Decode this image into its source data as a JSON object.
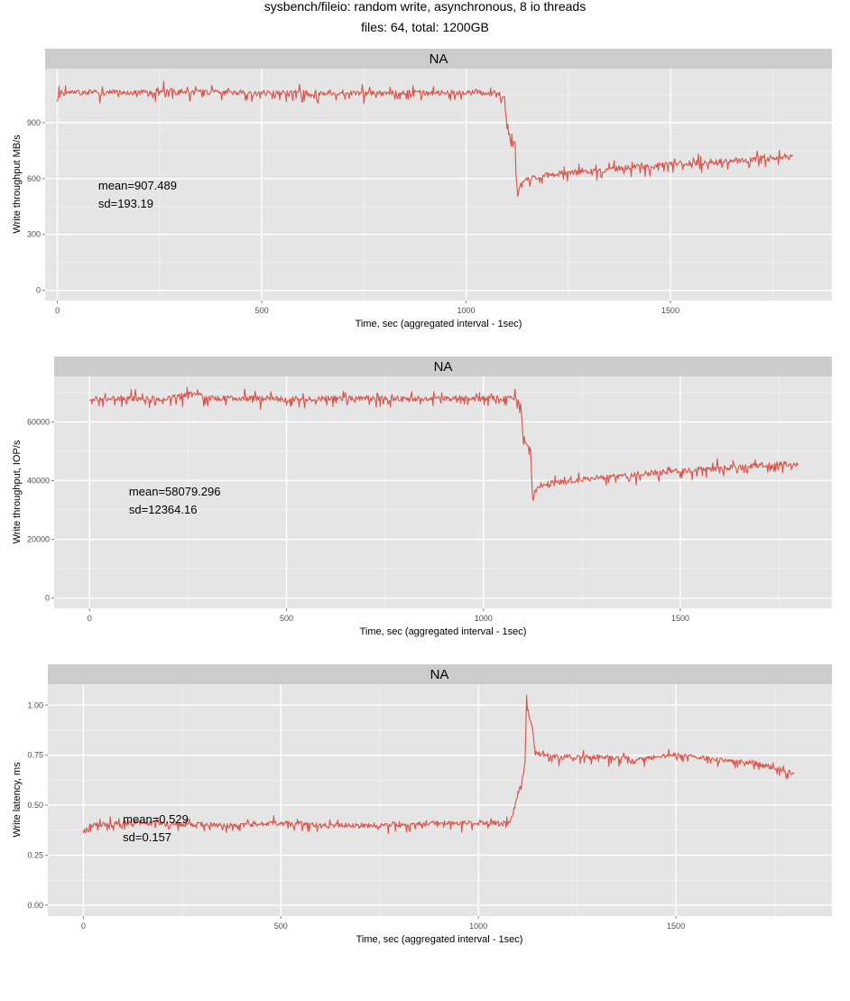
{
  "figure": {
    "title_line1": "sysbench/fileio: random write, asynchronous, 8 io threads",
    "title_line2": "files: 64, total: 1200GB",
    "line_color": "#d9534a",
    "panel_bg": "#e5e5e5",
    "strip_bg": "#cccccc",
    "grid_major": "#ffffff",
    "grid_minor": "#f2f2f2"
  },
  "chart_data": [
    {
      "type": "line",
      "strip": "NA",
      "xlabel": "Time, sec (aggregated interval - 1sec)",
      "ylabel": "Write throughput MB/s",
      "xlim": [
        -30,
        1895
      ],
      "ylim": [
        -55,
        1190
      ],
      "xticks": [
        0,
        500,
        1000,
        1500
      ],
      "xtick_labels": [
        "0",
        "500",
        "1000",
        "1500"
      ],
      "yticks": [
        0,
        300,
        600,
        900
      ],
      "ytick_labels": [
        "0",
        "300",
        "600",
        "900"
      ],
      "annotation_mean": "mean=907.489",
      "annotation_sd": "sd=193.19",
      "annotation_at": [
        100,
        540
      ],
      "series": [
        {
          "name": "throughput",
          "x": [
            0,
            100,
            200,
            280,
            290,
            400,
            500,
            600,
            700,
            800,
            900,
            1000,
            1080,
            1095,
            1100,
            1110,
            1120,
            1125,
            1130,
            1140,
            1200,
            1300,
            1400,
            1500,
            1600,
            1700,
            1800
          ],
          "y": [
            1060,
            1062,
            1060,
            1075,
            1065,
            1062,
            1058,
            1060,
            1062,
            1058,
            1060,
            1060,
            1060,
            1030,
            870,
            810,
            800,
            500,
            560,
            590,
            620,
            640,
            660,
            675,
            690,
            705,
            715
          ],
          "noise": 25
        }
      ]
    },
    {
      "type": "line",
      "strip": "NA",
      "xlabel": "Time, sec (aggregated interval - 1sec)",
      "ylabel": "Write throughput, IOP/s",
      "xlim": [
        -90,
        1885
      ],
      "ylim": [
        -3500,
        75500
      ],
      "xticks": [
        0,
        500,
        1000,
        1500
      ],
      "xtick_labels": [
        "0",
        "500",
        "1000",
        "1500"
      ],
      "yticks": [
        0,
        20000,
        40000,
        60000
      ],
      "ytick_labels": [
        "0",
        "20000",
        "40000",
        "60000"
      ],
      "annotation_mean": "mean=58079.296",
      "annotation_sd": "sd=12364.16",
      "annotation_at": [
        100,
        35000
      ],
      "series": [
        {
          "name": "iops",
          "x": [
            0,
            100,
            200,
            280,
            290,
            400,
            500,
            600,
            700,
            800,
            900,
            1000,
            1080,
            1095,
            1100,
            1110,
            1120,
            1125,
            1130,
            1140,
            1200,
            1300,
            1400,
            1500,
            1600,
            1700,
            1800
          ],
          "y": [
            68000,
            68000,
            68000,
            70000,
            68000,
            68000,
            67800,
            68000,
            68000,
            67800,
            68000,
            68000,
            68000,
            66000,
            56000,
            52000,
            51000,
            31000,
            36000,
            38500,
            39500,
            41000,
            42300,
            43300,
            44300,
            45300,
            45800
          ],
          "noise": 1600
        }
      ]
    },
    {
      "type": "line",
      "strip": "NA",
      "xlabel": "Time, sec (aggregated interval - 1sec)",
      "ylabel": "Write latency, ms",
      "xlim": [
        -90,
        1895
      ],
      "ylim": [
        -0.055,
        1.105
      ],
      "xticks": [
        0,
        500,
        1000,
        1500
      ],
      "xtick_labels": [
        "0",
        "500",
        "1000",
        "1500"
      ],
      "yticks": [
        0.0,
        0.25,
        0.5,
        0.75,
        1.0
      ],
      "ytick_labels": [
        "0.00",
        "0.25",
        "0.50",
        "0.75",
        "1.00"
      ],
      "annotation_mean": "mean=0.529",
      "annotation_sd": "sd=0.157",
      "annotation_at": [
        100,
        0.41
      ],
      "series": [
        {
          "name": "latency",
          "x": [
            0,
            20,
            100,
            200,
            300,
            400,
            500,
            600,
            700,
            800,
            900,
            1000,
            1080,
            1090,
            1100,
            1110,
            1118,
            1122,
            1128,
            1135,
            1145,
            1200,
            1300,
            1400,
            1500,
            1600,
            1700,
            1800
          ],
          "y": [
            0.37,
            0.4,
            0.41,
            0.41,
            0.4,
            0.4,
            0.41,
            0.4,
            0.4,
            0.4,
            0.41,
            0.41,
            0.41,
            0.48,
            0.56,
            0.62,
            0.7,
            1.04,
            0.95,
            0.9,
            0.76,
            0.74,
            0.74,
            0.73,
            0.75,
            0.73,
            0.71,
            0.66
          ],
          "noise": 0.02
        }
      ]
    }
  ]
}
